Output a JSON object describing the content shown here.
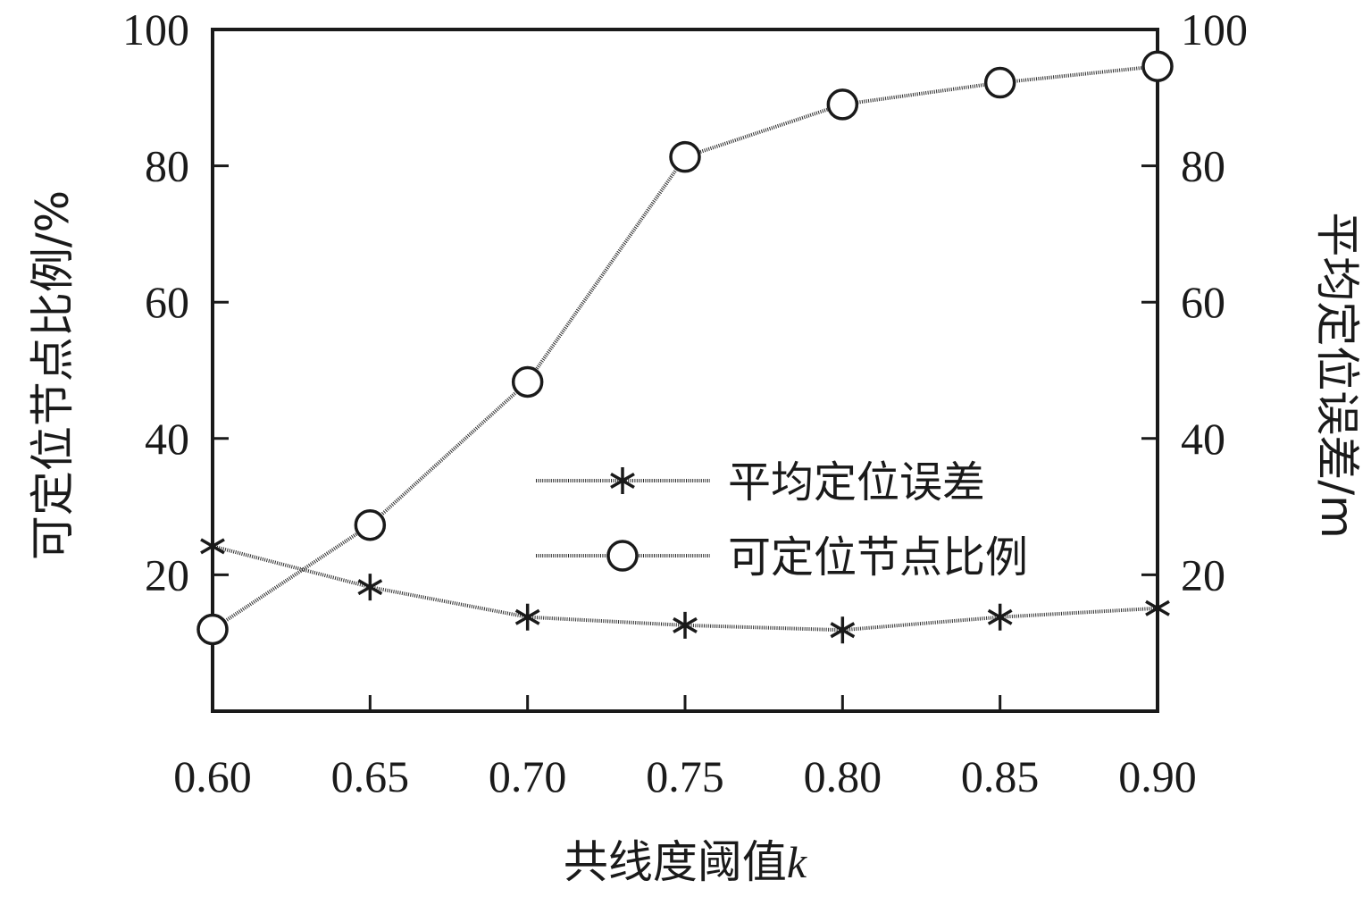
{
  "chart_data": {
    "type": "line",
    "x": [
      0.6,
      0.65,
      0.7,
      0.75,
      0.8,
      0.85,
      0.9
    ],
    "x_tick_labels": [
      "0.60",
      "0.65",
      "0.70",
      "0.75",
      "0.80",
      "0.85",
      "0.90"
    ],
    "xlabel_text": "共线度阈值",
    "xlabel_var": "k",
    "ylabel_left": "可定位节点比例/%",
    "ylabel_right": "平均定位误差/m",
    "ylim": [
      0,
      100
    ],
    "y_ticks": [
      20,
      40,
      60,
      80,
      100
    ],
    "y_tick_labels": [
      "20",
      "40",
      "60",
      "80",
      "100"
    ],
    "grid": false,
    "legend_position": "center-right",
    "series": [
      {
        "name": "平均定位误差",
        "marker": "star",
        "axis": "right",
        "values": [
          24.2,
          18.2,
          13.8,
          12.6,
          11.9,
          13.8,
          15.1
        ]
      },
      {
        "name": "可定位节点比例",
        "marker": "circle",
        "axis": "left",
        "values": [
          12.0,
          27.3,
          48.3,
          81.3,
          89.0,
          92.2,
          94.6
        ]
      }
    ]
  }
}
